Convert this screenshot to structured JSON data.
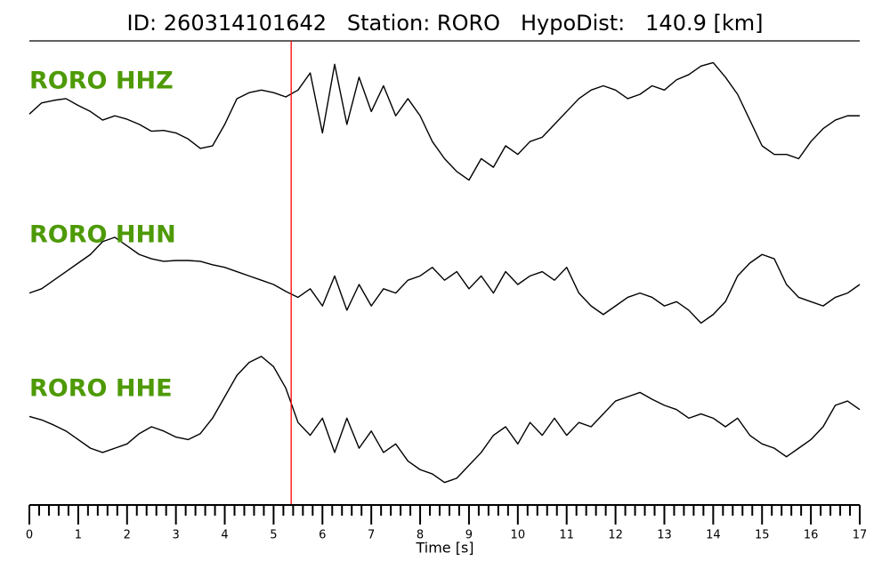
{
  "chart_data": {
    "type": "seismogram",
    "title": "ID: 260314101642   Station: RORO   HypoDist:   140.9 [km]",
    "xlabel": "Time [s]",
    "xlim": [
      0,
      17
    ],
    "xticks": [
      0,
      1,
      2,
      3,
      4,
      5,
      6,
      7,
      8,
      9,
      10,
      11,
      12,
      13,
      14,
      15,
      16,
      17
    ],
    "xminor_step": 0.2,
    "pick_time": 5.36,
    "pick_color": "#ff0000",
    "label_color": "#4e9a06",
    "x": [
      0,
      0.25,
      0.5,
      0.75,
      1,
      1.25,
      1.5,
      1.75,
      2,
      2.25,
      2.5,
      2.75,
      3,
      3.25,
      3.5,
      3.75,
      4,
      4.25,
      4.5,
      4.75,
      5,
      5.25,
      5.5,
      5.75,
      6,
      6.25,
      6.5,
      6.75,
      7,
      7.25,
      7.5,
      7.75,
      8,
      8.25,
      8.5,
      8.75,
      9,
      9.25,
      9.5,
      9.75,
      10,
      10.25,
      10.5,
      10.75,
      11,
      11.25,
      11.5,
      11.75,
      12,
      12.25,
      12.5,
      12.75,
      13,
      13.25,
      13.5,
      13.75,
      14,
      14.25,
      14.5,
      14.75,
      15,
      15.25,
      15.5,
      15.75,
      16,
      16.25,
      16.5,
      16.75,
      17
    ],
    "series": [
      {
        "name": "RORO HHZ",
        "color": "#000000",
        "ylim": [
          -85,
          85
        ],
        "values": [
          9,
          22,
          25,
          27,
          19,
          12,
          2,
          7,
          3,
          -3,
          -11,
          -10,
          -13,
          -20,
          -31,
          -28,
          -3,
          27,
          34,
          37,
          34,
          29,
          37,
          57,
          -13,
          67,
          -3,
          52,
          12,
          42,
          7,
          27,
          7,
          -23,
          -43,
          -58,
          -68,
          -43,
          -53,
          -28,
          -38,
          -23,
          -18,
          -3,
          12,
          27,
          37,
          42,
          37,
          27,
          32,
          42,
          37,
          49,
          55,
          65,
          69,
          52,
          32,
          2,
          -28,
          -38,
          -38,
          -43,
          -23,
          -8,
          2,
          7,
          7
        ]
      },
      {
        "name": "RORO HHN",
        "color": "#000000",
        "ylim": [
          -85,
          85
        ],
        "values": [
          -10,
          -5,
          5,
          15,
          25,
          35,
          50,
          55,
          45,
          35,
          30,
          27,
          28,
          28,
          27,
          23,
          20,
          15,
          10,
          5,
          0,
          -8,
          -15,
          -5,
          -25,
          10,
          -30,
          0,
          -25,
          -5,
          -10,
          5,
          10,
          20,
          5,
          15,
          -5,
          10,
          -10,
          15,
          0,
          10,
          15,
          5,
          20,
          -10,
          -25,
          -35,
          -25,
          -15,
          -10,
          -15,
          -25,
          -20,
          -30,
          -45,
          -35,
          -20,
          10,
          25,
          35,
          30,
          0,
          -15,
          -20,
          -25,
          -15,
          -10,
          0
        ]
      },
      {
        "name": "RORO HHE",
        "color": "#000000",
        "ylim": [
          -85,
          85
        ],
        "values": [
          12,
          8,
          2,
          -5,
          -15,
          -25,
          -30,
          -25,
          -20,
          -8,
          0,
          -5,
          -12,
          -15,
          -8,
          10,
          35,
          60,
          75,
          82,
          70,
          45,
          5,
          -10,
          10,
          -30,
          10,
          -25,
          -5,
          -30,
          -20,
          -40,
          -50,
          -55,
          -65,
          -60,
          -45,
          -30,
          -10,
          0,
          -20,
          5,
          -10,
          10,
          -10,
          5,
          0,
          15,
          30,
          35,
          40,
          32,
          25,
          20,
          10,
          15,
          10,
          0,
          10,
          -10,
          -20,
          -25,
          -35,
          -25,
          -15,
          0,
          25,
          30,
          20
        ]
      }
    ]
  }
}
